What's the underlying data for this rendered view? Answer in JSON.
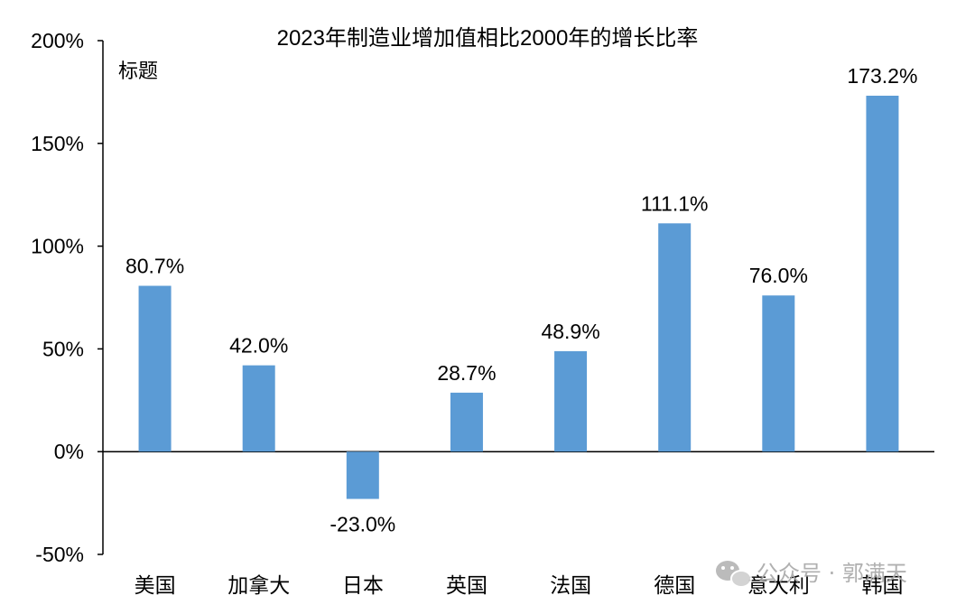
{
  "chart_data": {
    "type": "bar",
    "title": "2023年制造业增加值相比2000年的增长比率",
    "subtitle": "标题",
    "categories": [
      "美国",
      "加拿大",
      "日本",
      "英国",
      "法国",
      "德国",
      "意大利",
      "韩国"
    ],
    "values": [
      80.7,
      42.0,
      -23.0,
      28.7,
      48.9,
      111.1,
      76.0,
      173.2
    ],
    "data_labels": [
      "80.7%",
      "42.0%",
      "-23.0%",
      "28.7%",
      "48.9%",
      "111.1%",
      "76.0%",
      "173.2%"
    ],
    "ylim": [
      -50,
      200
    ],
    "yticks": [
      -50,
      0,
      50,
      100,
      150,
      200
    ],
    "ytick_labels": [
      "-50%",
      "0%",
      "50%",
      "100%",
      "150%",
      "200%"
    ],
    "xlabel": "",
    "ylabel": "",
    "grid": false,
    "bar_color": "#5b9bd5"
  },
  "watermark": {
    "text": "公众号 · 郭满天",
    "icon": "wechat-icon"
  }
}
